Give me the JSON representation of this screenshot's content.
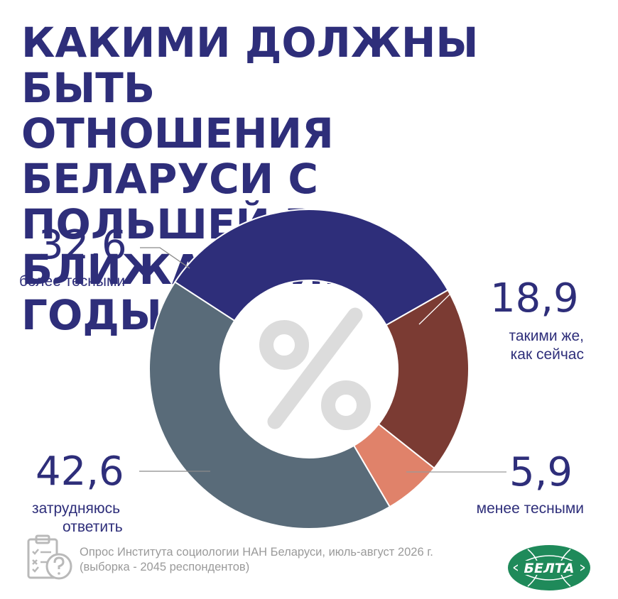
{
  "title_lines": [
    "КАКИМИ ДОЛЖНЫ БЫТЬ",
    "ОТНОШЕНИЯ БЕЛАРУСИ С",
    "ПОЛЬШЕЙ В БЛИЖАЙШИЕ",
    "ГОДЫ?"
  ],
  "chart_data": {
    "type": "pie",
    "title": "КАКИМИ ДОЛЖНЫ БЫТЬ ОТНОШЕНИЯ БЕЛАРУСИ С ПОЛЬШЕЙ В БЛИЖАЙШИЕ ГОДЫ?",
    "center_symbol": "%",
    "slices": [
      {
        "value": 32.6,
        "value_label": "32,6",
        "label_lines": [
          "более тесными"
        ],
        "color": "#2e2e7a"
      },
      {
        "value": 18.9,
        "value_label": "18,9",
        "label_lines": [
          "такими же,",
          "как сейчас"
        ],
        "color": "#7b3b33"
      },
      {
        "value": 5.9,
        "value_label": "5,9",
        "label_lines": [
          "менее тесными"
        ],
        "color": "#e0826a"
      },
      {
        "value": 42.6,
        "value_label": "42,6",
        "label_lines": [
          "затрудняюсь",
          "ответить"
        ],
        "color": "#596b79"
      }
    ]
  },
  "footnote_lines": [
    "Опрос Института социологии НАН Беларуси, июль-август 2026 г.",
    "(выборка - 2045 респондентов)"
  ],
  "logo_text": "БЕЛТА",
  "icon": "survey-clipboard-question-icon"
}
